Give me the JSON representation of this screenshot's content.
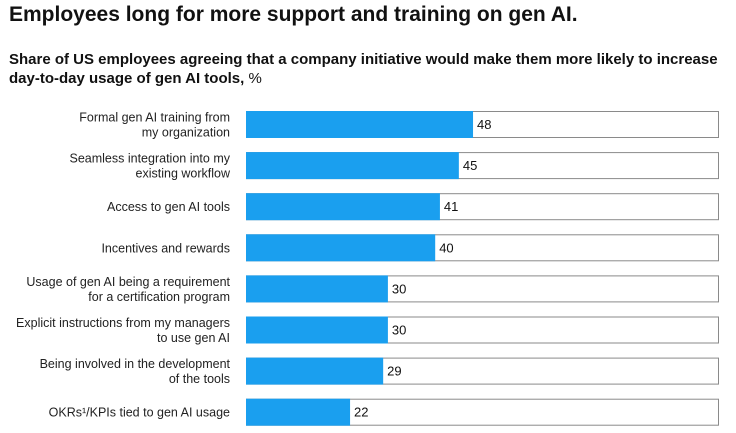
{
  "chart_data": {
    "type": "bar",
    "orientation": "horizontal",
    "title": "Employees long for more support and training on gen AI.",
    "subtitle": "Share of US employees agreeing that a company initiative would make them more likely to increase day-to-day usage of gen AI tools,",
    "unit": "%",
    "categories": [
      [
        "Formal gen AI training from",
        "my organization"
      ],
      [
        "Seamless integration into my",
        "existing workflow"
      ],
      [
        "Access to gen AI tools"
      ],
      [
        "Incentives and rewards"
      ],
      [
        "Usage of gen AI being a requirement",
        "for a certification program"
      ],
      [
        "Explicit instructions from my managers",
        "to use gen AI"
      ],
      [
        "Being involved in the development",
        "of the tools"
      ],
      [
        "OKRs¹/KPIs tied to gen AI usage"
      ]
    ],
    "values": [
      48,
      45,
      41,
      40,
      30,
      30,
      29,
      22
    ],
    "xlim": [
      0,
      100
    ],
    "bar_color": "#1a9fef",
    "track_border_color": "#8a8a8a",
    "grid": false,
    "legend": "none"
  }
}
